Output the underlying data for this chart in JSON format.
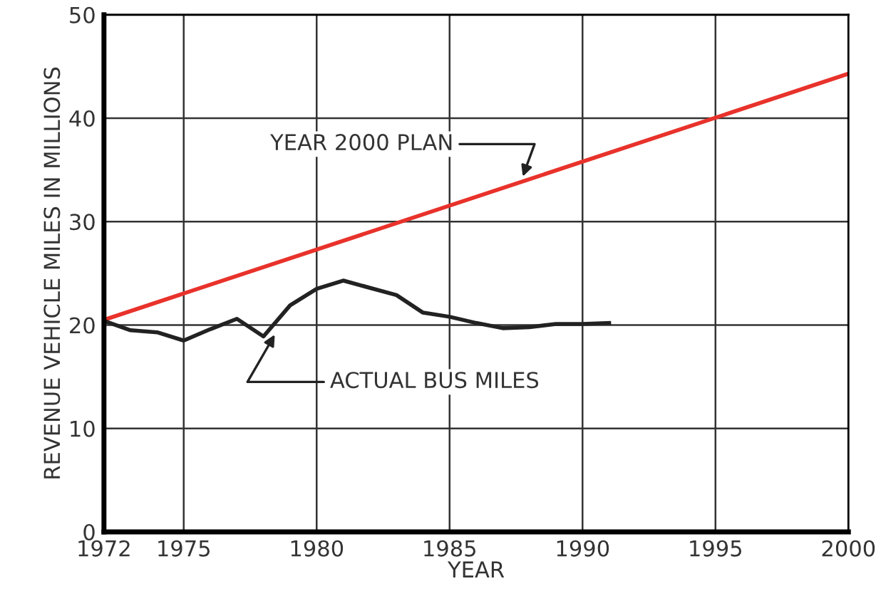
{
  "chart_data": {
    "type": "line",
    "xlabel": "YEAR",
    "ylabel": "REVENUE VEHICLE MILES IN MILLIONS",
    "xlim": [
      1972,
      2000
    ],
    "xticks": [
      1972,
      1975,
      1980,
      1985,
      1990,
      1995,
      2000
    ],
    "ylim": [
      0,
      50
    ],
    "yticks": [
      0,
      10,
      20,
      30,
      40,
      50
    ],
    "grid": true,
    "line_style": "solid",
    "series": [
      {
        "color": "#e8322b",
        "x": [
          1972,
          2000
        ],
        "values": [
          20.5,
          44.3
        ]
      },
      {
        "color": "#222222",
        "x": [
          1972,
          1973,
          1974,
          1975,
          1976,
          1977,
          1978,
          1979,
          1980,
          1981,
          1982,
          1983,
          1984,
          1985,
          1986,
          1987,
          1988,
          1989,
          1990,
          1991
        ],
        "values": [
          20.4,
          19.5,
          19.3,
          18.5,
          19.6,
          20.6,
          18.9,
          21.9,
          23.5,
          24.3,
          23.6,
          22.9,
          21.2,
          20.8,
          20.2,
          19.7,
          19.8,
          20.1,
          20.1,
          20.2
        ]
      }
    ],
    "annotations": [
      {
        "text": "YEAR 2000 PLAN",
        "x": 1987.7,
        "y": 34.0
      },
      {
        "text": "ACTUAL BUS MILES",
        "x": 1978.5,
        "y": 19.4
      }
    ]
  }
}
